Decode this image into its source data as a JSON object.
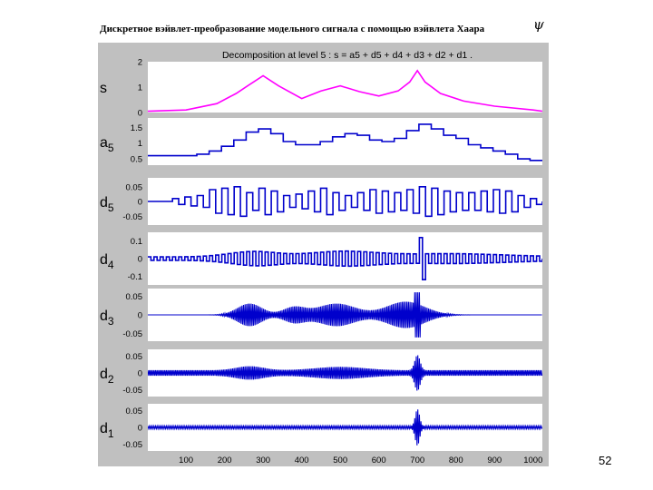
{
  "slide": {
    "title": "Дискретное вэйвлет-преобразование модельного сигнала с помощью вэйвлета Хаара",
    "psi_symbol": "ψ",
    "page_number": "52"
  },
  "chart_data": {
    "type": "line",
    "title": "Decomposition at level 5 : s = a5 + d5 + d4 + d3 + d2 + d1 .",
    "xlim": [
      1,
      1024
    ],
    "x_ticks": [
      "100",
      "200",
      "300",
      "400",
      "500",
      "600",
      "700",
      "800",
      "900",
      "1000"
    ],
    "x_tick_values": [
      100,
      200,
      300,
      400,
      500,
      600,
      700,
      800,
      900,
      1000
    ],
    "colors": {
      "figure_bg": "#c0c0c0",
      "axes_bg": "#ffffff",
      "signal": "#ff00ff",
      "components": "#0000cc"
    },
    "panels": [
      {
        "label_main": "s",
        "label_sub": "",
        "ylim": [
          0,
          2
        ],
        "y_ticks": [
          "2",
          "1",
          "0"
        ],
        "y_tick_values": [
          2,
          1,
          0
        ],
        "description": "Model signal: two smooth humps and a sharp cusp",
        "series": [
          {
            "name": "s",
            "x": [
              1,
              100,
              180,
              230,
              260,
              300,
              340,
              400,
              450,
              500,
              550,
              600,
              650,
              680,
              700,
              720,
              760,
              820,
              900,
              1000,
              1024
            ],
            "y": [
              0.05,
              0.1,
              0.35,
              0.75,
              1.05,
              1.45,
              1.05,
              0.55,
              0.85,
              1.05,
              0.82,
              0.65,
              0.85,
              1.2,
              1.65,
              1.2,
              0.75,
              0.45,
              0.25,
              0.1,
              0.05
            ]
          }
        ]
      },
      {
        "label_main": "a",
        "label_sub": "5",
        "ylim": [
          0.3,
          1.8
        ],
        "y_ticks": [
          "1.5",
          "1",
          "0.5"
        ],
        "y_tick_values": [
          1.5,
          1,
          0.5
        ],
        "description": "Level-5 approximation (piecewise constant, 32-sample steps)",
        "step_width": 32,
        "series": [
          {
            "name": "a5",
            "x": [
              1,
              32,
              64,
              96,
              128,
              160,
              192,
              224,
              256,
              288,
              320,
              352,
              384,
              416,
              448,
              480,
              512,
              544,
              576,
              608,
              640,
              672,
              704,
              736,
              768,
              800,
              832,
              864,
              896,
              928,
              960,
              992,
              1024
            ],
            "y": [
              0.6,
              0.6,
              0.6,
              0.6,
              0.65,
              0.75,
              0.9,
              1.1,
              1.35,
              1.45,
              1.3,
              1.05,
              0.95,
              0.95,
              1.05,
              1.2,
              1.3,
              1.25,
              1.1,
              1.05,
              1.15,
              1.4,
              1.6,
              1.45,
              1.25,
              1.15,
              0.95,
              0.85,
              0.75,
              0.65,
              0.5,
              0.45,
              0.45
            ]
          }
        ]
      },
      {
        "label_main": "d",
        "label_sub": "5",
        "ylim": [
          -0.08,
          0.08
        ],
        "y_ticks": [
          "0.05",
          "0",
          "-0.05"
        ],
        "y_tick_values": [
          0.05,
          0,
          -0.05
        ],
        "description": "Level-5 detail: square pulses of width 32",
        "series": [
          {
            "name": "d5",
            "x": [],
            "y": []
          }
        ]
      },
      {
        "label_main": "d",
        "label_sub": "4",
        "ylim": [
          -0.15,
          0.15
        ],
        "y_ticks": [
          "0.1",
          "0",
          "-0.1"
        ],
        "y_tick_values": [
          0.1,
          0,
          -0.1
        ],
        "description": "Level-4 detail: square pulses of width 16, spike near x=700",
        "series": [
          {
            "name": "d4",
            "x": [],
            "y": []
          }
        ]
      },
      {
        "label_main": "d",
        "label_sub": "3",
        "ylim": [
          -0.07,
          0.07
        ],
        "y_ticks": [
          "0.05",
          "0",
          "-0.05"
        ],
        "y_tick_values": [
          0.05,
          0,
          -0.05
        ],
        "description": "Level-3 detail: dense oscillation with envelopes around 270, 380, 500, 700",
        "series": [
          {
            "name": "d3",
            "x": [],
            "y": []
          }
        ]
      },
      {
        "label_main": "d",
        "label_sub": "2",
        "ylim": [
          -0.07,
          0.07
        ],
        "y_ticks": [
          "0.05",
          "0",
          "-0.05"
        ],
        "y_tick_values": [
          0.05,
          0,
          -0.05
        ],
        "description": "Level-2 detail: fine oscillation, burst near x=700",
        "series": [
          {
            "name": "d2",
            "x": [],
            "y": []
          }
        ]
      },
      {
        "label_main": "d",
        "label_sub": "1",
        "ylim": [
          -0.07,
          0.07
        ],
        "y_ticks": [
          "0.05",
          "0",
          "-0.05"
        ],
        "y_tick_values": [
          0.05,
          0,
          -0.05
        ],
        "description": "Level-1 detail: near zero except burst near x=700",
        "series": [
          {
            "name": "d1",
            "x": [],
            "y": []
          }
        ]
      }
    ]
  }
}
